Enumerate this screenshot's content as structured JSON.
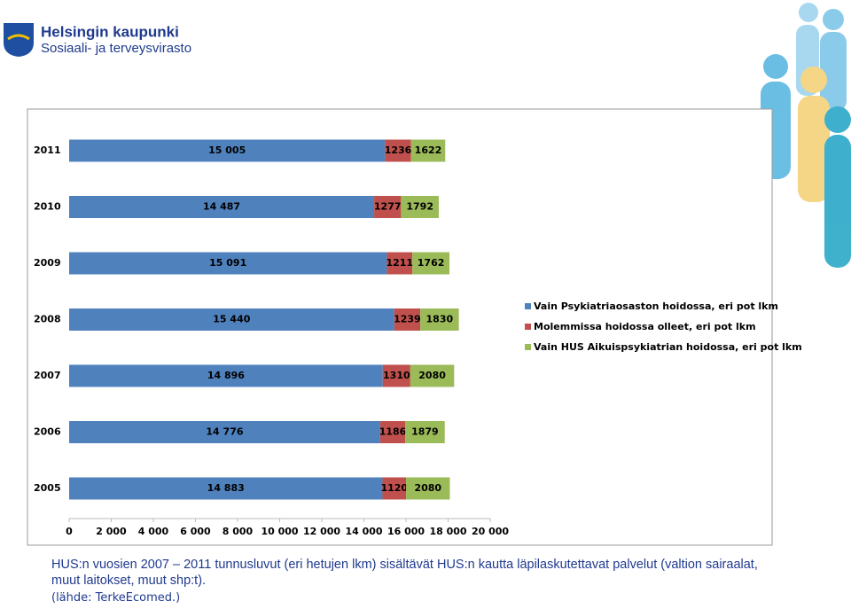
{
  "header": {
    "title": "Helsingin kaupunki",
    "subtitle": "Sosiaali- ja terveysvirasto"
  },
  "chart_data": {
    "type": "stacked-bar-horizontal",
    "categories": [
      "2011",
      "2010",
      "2009",
      "2008",
      "2007",
      "2006",
      "2005"
    ],
    "series": [
      {
        "name": "Vain Psykiatriaosaston hoidossa, eri pot lkm",
        "color": "#4f81bd",
        "values": [
          15005,
          14487,
          15091,
          15440,
          14896,
          14776,
          14883
        ],
        "value_labels": [
          "15 005",
          "14 487",
          "15 091",
          "15 440",
          "14 896",
          "14 776",
          "14 883"
        ]
      },
      {
        "name": "Molemmissa hoidossa olleet, eri pot lkm",
        "color": "#c0504d",
        "values": [
          1236,
          1277,
          1211,
          1239,
          1310,
          1186,
          1120
        ]
      },
      {
        "name": "Vain HUS Aikuispsykiatrian hoidossa, eri pot lkm",
        "color": "#9bbb59",
        "values": [
          1622,
          1792,
          1762,
          1830,
          2080,
          1879,
          2080
        ]
      }
    ],
    "xlim": [
      0,
      20000
    ],
    "xticks": [
      0,
      {
        "value": 2000,
        "label": "2 000"
      },
      {
        "value": 4000,
        "label": "4 000"
      },
      {
        "value": 6000,
        "label": "6 000"
      },
      {
        "value": 8000,
        "label": "8 000"
      },
      {
        "value": 10000,
        "label": "10 000"
      },
      {
        "value": 12000,
        "label": "12 000"
      },
      {
        "value": 14000,
        "label": "14 000"
      },
      {
        "value": 16000,
        "label": "16 000"
      },
      {
        "value": 18000,
        "label": "18 000"
      },
      {
        "value": 20000,
        "label": "20 000"
      }
    ],
    "legend": "right"
  },
  "caption": {
    "text": "HUS:n vuosien 2007 – 2011 tunnusluvut (eri hetujen lkm) sisältävät HUS:n kautta läpilaskutettavat  palvelut (valtion sairaalat, muut laitokset, muut shp:t).",
    "source": "(lähde: TerkeEcomed.)"
  }
}
